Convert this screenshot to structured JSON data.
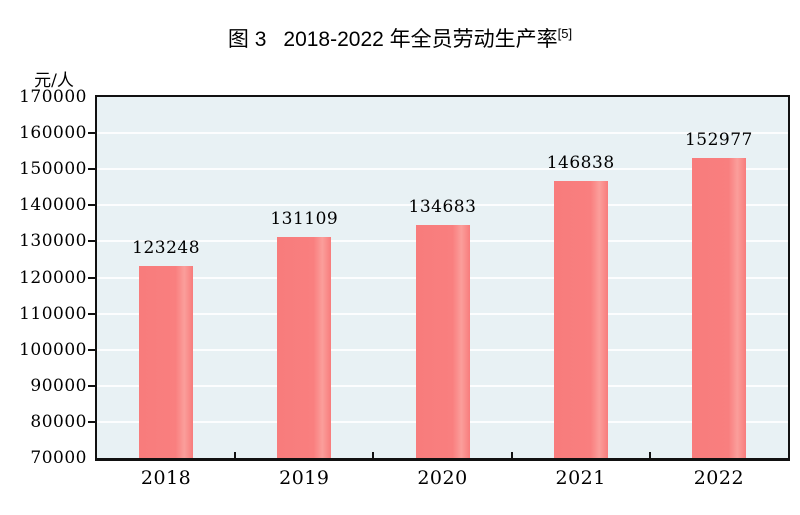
{
  "figure": {
    "title_prefix": "图 3",
    "title_main": "2018-2022 年全员劳动生产率",
    "title_footnote": "[5]",
    "unit_label": "元/人"
  },
  "chart_data": {
    "type": "bar",
    "title": "图 3 2018-2022 年全员劳动生产率[5]",
    "categories": [
      "2018",
      "2019",
      "2020",
      "2021",
      "2022"
    ],
    "values": [
      123248,
      131109,
      134683,
      146838,
      152977
    ],
    "xlabel": "",
    "ylabel": "元/人",
    "ylim": [
      70000,
      170000
    ],
    "ytick_step": 10000,
    "grid": true,
    "legend": "none",
    "value_labels": true,
    "colors": {
      "bar": "#f97f7f",
      "plot_background": "#e8f1f4",
      "gridline": "#f5fbfc",
      "axis_frame": "#111111",
      "text": "#000000",
      "page_background": "#ffffff"
    }
  }
}
